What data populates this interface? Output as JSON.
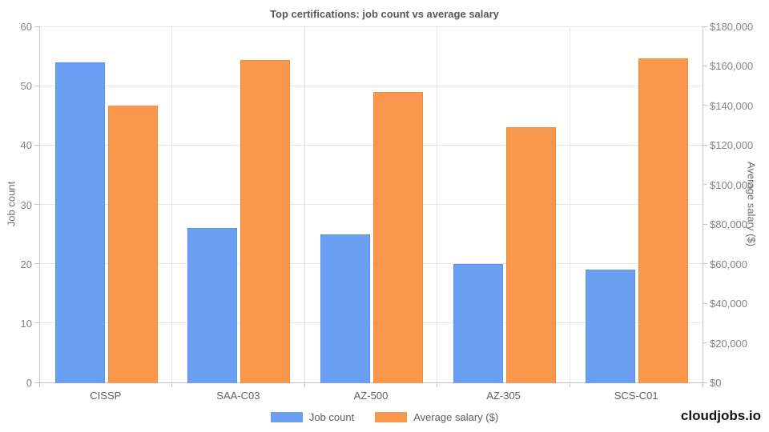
{
  "title": "Top certifications: job count vs average salary",
  "footer": {
    "brand": "cloudjobs.io"
  },
  "chart_data": {
    "type": "bar",
    "title": "Top certifications: job count vs average salary",
    "categories": [
      "CISSP",
      "SAA-C03",
      "AZ-500",
      "AZ-305",
      "SCS-C01"
    ],
    "series": [
      {
        "name": "Job count",
        "axis": "left",
        "color": "#6a9ff2",
        "border_color": "#5b91e8",
        "values": [
          54,
          26,
          25,
          20,
          19
        ]
      },
      {
        "name": "Average salary ($)",
        "axis": "right",
        "color": "#f9974d",
        "border_color": "#f08b36",
        "values": [
          140000,
          163000,
          147000,
          129000,
          164000
        ]
      }
    ],
    "left_axis": {
      "label": "Job count",
      "min": 0,
      "max": 60,
      "ticks": [
        "0",
        "10",
        "20",
        "30",
        "40",
        "50",
        "60"
      ]
    },
    "right_axis": {
      "label": "Average salary ($)",
      "min": 0,
      "max": 180000,
      "ticks": [
        "$0",
        "$20,000",
        "$40,000",
        "$60,000",
        "$80,000",
        "$100,000",
        "$120,000",
        "$140,000",
        "$160,000",
        "$180,000"
      ]
    },
    "legend_position": "bottom",
    "grid": true,
    "colors": {
      "gridline": "#e6e6e6",
      "axis_line": "#c6c6c6"
    }
  }
}
